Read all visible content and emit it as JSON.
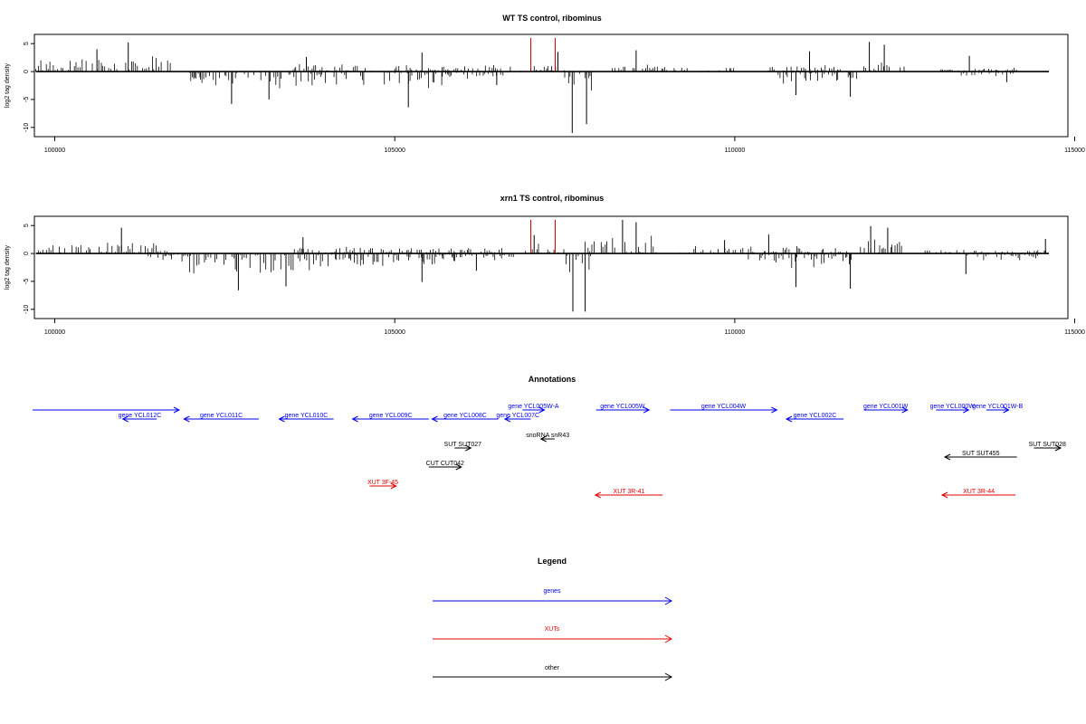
{
  "chart_data": [
    {
      "type": "bar",
      "title": "WT TS control, ribominus",
      "ylabel": "log2 tag density",
      "xlim": [
        99700,
        114900
      ],
      "ylim": [
        -11,
        6
      ],
      "yticks": [
        -10,
        -5,
        0,
        5
      ],
      "xticks": [
        100000,
        105000,
        110000,
        115000
      ],
      "baseline_x": [
        99720,
        114620
      ],
      "highlight_color": "#e00000",
      "highlights": [
        {
          "x": 107000,
          "y": 6.0
        },
        {
          "x": 107360,
          "y": 6.0
        }
      ],
      "regions": [
        {
          "from": 99720,
          "to": 101700,
          "sign": 1,
          "max": 3.0,
          "peaks": [
            {
              "x": 101080,
              "y": 5.2
            },
            {
              "x": 100620,
              "y": 4.0
            }
          ]
        },
        {
          "from": 101950,
          "to": 102150,
          "sign": -1,
          "max": 2.0,
          "peaks": []
        },
        {
          "from": 102000,
          "to": 104300,
          "sign": -1,
          "max": 3.2,
          "peaks": [
            {
              "x": 102600,
              "y": -5.8
            },
            {
              "x": 103150,
              "y": -5.0
            }
          ]
        },
        {
          "from": 103500,
          "to": 104700,
          "sign": 1,
          "max": 1.4,
          "peaks": [
            {
              "x": 103700,
              "y": 2.6
            }
          ]
        },
        {
          "from": 104500,
          "to": 105900,
          "sign": -1,
          "max": 3.4,
          "peaks": [
            {
              "x": 105200,
              "y": -6.4
            }
          ]
        },
        {
          "from": 105000,
          "to": 106600,
          "sign": 1,
          "max": 1.3,
          "peaks": [
            {
              "x": 105400,
              "y": 3.4
            }
          ]
        },
        {
          "from": 105700,
          "to": 106700,
          "sign": -1,
          "max": 1.4,
          "peaks": [
            {
              "x": 106500,
              "y": -2.4
            }
          ]
        },
        {
          "from": 106700,
          "to": 107500,
          "sign": 1,
          "max": 1.4,
          "peaks": [
            {
              "x": 107400,
              "y": 3.5
            }
          ]
        },
        {
          "from": 107500,
          "to": 107900,
          "sign": -1,
          "max": 6.5,
          "peaks": [
            {
              "x": 107610,
              "y": -11.0
            },
            {
              "x": 107820,
              "y": -9.4
            }
          ]
        },
        {
          "from": 108200,
          "to": 109300,
          "sign": 1,
          "max": 1.4,
          "peaks": [
            {
              "x": 108550,
              "y": 3.8
            }
          ]
        },
        {
          "from": 109500,
          "to": 110000,
          "sign": 1,
          "max": 0.8,
          "peaks": []
        },
        {
          "from": 110600,
          "to": 111800,
          "sign": -1,
          "max": 2.6,
          "peaks": [
            {
              "x": 110900,
              "y": -4.2
            },
            {
              "x": 111700,
              "y": -4.5
            }
          ]
        },
        {
          "from": 110500,
          "to": 111600,
          "sign": 1,
          "max": 1.4,
          "peaks": [
            {
              "x": 111100,
              "y": 3.6
            }
          ]
        },
        {
          "from": 111900,
          "to": 112500,
          "sign": 1,
          "max": 3.4,
          "peaks": [
            {
              "x": 111980,
              "y": 5.3
            },
            {
              "x": 112200,
              "y": 4.8
            }
          ]
        },
        {
          "from": 113000,
          "to": 114200,
          "sign": 1,
          "max": 0.8,
          "peaks": [
            {
              "x": 113450,
              "y": 2.8
            }
          ]
        },
        {
          "from": 113300,
          "to": 114200,
          "sign": -1,
          "max": 0.9,
          "peaks": [
            {
              "x": 114000,
              "y": -1.9
            }
          ]
        }
      ]
    },
    {
      "type": "bar",
      "title": "xrn1 TS control, ribominus",
      "ylabel": "log2 tag density",
      "xlim": [
        99700,
        114900
      ],
      "ylim": [
        -11,
        6
      ],
      "yticks": [
        -10,
        -5,
        0,
        5
      ],
      "xticks": [
        100000,
        105000,
        110000,
        115000
      ],
      "baseline_x": [
        99720,
        114620
      ],
      "highlight_color": "#e00000",
      "highlights": [
        {
          "x": 107000,
          "y": 6.0
        },
        {
          "x": 107360,
          "y": 6.0
        }
      ],
      "regions": [
        {
          "from": 99720,
          "to": 101700,
          "sign": 1,
          "max": 2.4,
          "peaks": [
            {
              "x": 100980,
              "y": 4.6
            }
          ]
        },
        {
          "from": 101300,
          "to": 102000,
          "sign": -1,
          "max": 1.6,
          "peaks": []
        },
        {
          "from": 101950,
          "to": 104400,
          "sign": -1,
          "max": 4.0,
          "peaks": [
            {
              "x": 102700,
              "y": -6.6
            },
            {
              "x": 103400,
              "y": -5.9
            }
          ]
        },
        {
          "from": 103500,
          "to": 105000,
          "sign": 1,
          "max": 1.4,
          "peaks": [
            {
              "x": 103650,
              "y": 2.9
            }
          ]
        },
        {
          "from": 104300,
          "to": 105900,
          "sign": -1,
          "max": 2.8,
          "peaks": [
            {
              "x": 105400,
              "y": -5.1
            }
          ]
        },
        {
          "from": 104800,
          "to": 106700,
          "sign": 1,
          "max": 1.3,
          "peaks": []
        },
        {
          "from": 105700,
          "to": 106800,
          "sign": -1,
          "max": 1.6,
          "peaks": [
            {
              "x": 106200,
              "y": -3.1
            }
          ]
        },
        {
          "from": 106900,
          "to": 107500,
          "sign": 1,
          "max": 2.0,
          "peaks": [
            {
              "x": 107050,
              "y": 3.3
            }
          ]
        },
        {
          "from": 107500,
          "to": 107900,
          "sign": -1,
          "max": 6.0,
          "peaks": [
            {
              "x": 107620,
              "y": -10.4
            },
            {
              "x": 107800,
              "y": -10.4
            }
          ]
        },
        {
          "from": 107800,
          "to": 108850,
          "sign": 1,
          "max": 4.2,
          "peaks": [
            {
              "x": 108350,
              "y": 6.0
            },
            {
              "x": 108550,
              "y": 5.6
            }
          ]
        },
        {
          "from": 109200,
          "to": 110800,
          "sign": 1,
          "max": 1.4,
          "peaks": [
            {
              "x": 109850,
              "y": 2.4
            }
          ]
        },
        {
          "from": 110200,
          "to": 111800,
          "sign": -1,
          "max": 3.0,
          "peaks": [
            {
              "x": 110900,
              "y": -6.0
            },
            {
              "x": 111700,
              "y": -6.3
            }
          ]
        },
        {
          "from": 110400,
          "to": 111700,
          "sign": 1,
          "max": 1.6,
          "peaks": [
            {
              "x": 110500,
              "y": 3.4
            }
          ]
        },
        {
          "from": 111850,
          "to": 112500,
          "sign": 1,
          "max": 3.6,
          "peaks": [
            {
              "x": 112000,
              "y": 4.9
            },
            {
              "x": 112250,
              "y": 4.6
            }
          ]
        },
        {
          "from": 112800,
          "to": 114600,
          "sign": 1,
          "max": 0.9,
          "peaks": [
            {
              "x": 114570,
              "y": 2.6
            }
          ]
        },
        {
          "from": 113300,
          "to": 114500,
          "sign": -1,
          "max": 1.4,
          "peaks": [
            {
              "x": 113400,
              "y": -3.7
            }
          ]
        }
      ]
    }
  ],
  "annotations": {
    "title": "Annotations",
    "xlim": [
      99700,
      114900
    ],
    "colors": {
      "gene": "#0000ee",
      "xut": "#e00000",
      "other": "#000000"
    },
    "features": [
      {
        "label": "",
        "kind": "gene",
        "start": 99600,
        "end": 101830,
        "dir": "+",
        "row": 0
      },
      {
        "label": "gene YCL012C",
        "kind": "gene",
        "start": 101000,
        "end": 101500,
        "dir": "-",
        "row": 1
      },
      {
        "label": "gene YCL011C",
        "kind": "gene",
        "start": 101900,
        "end": 103000,
        "dir": "-",
        "row": 1
      },
      {
        "label": "gene YCL010C",
        "kind": "gene",
        "start": 103300,
        "end": 104100,
        "dir": "-",
        "row": 1
      },
      {
        "label": "gene YCL009C",
        "kind": "gene",
        "start": 104380,
        "end": 105500,
        "dir": "-",
        "row": 1
      },
      {
        "label": "gene YCL008C",
        "kind": "gene",
        "start": 105550,
        "end": 106520,
        "dir": "-",
        "row": 1
      },
      {
        "label": "gene YCL005W-A",
        "kind": "gene",
        "start": 106880,
        "end": 107200,
        "dir": "+",
        "row": 0
      },
      {
        "label": "gene YCL007C",
        "kind": "gene",
        "start": 106620,
        "end": 107000,
        "dir": "-",
        "row": 1
      },
      {
        "label": "gene YCL005W",
        "kind": "gene",
        "start": 107960,
        "end": 108740,
        "dir": "+",
        "row": 0
      },
      {
        "label": "gene YCL004W",
        "kind": "gene",
        "start": 109050,
        "end": 110620,
        "dir": "+",
        "row": 0
      },
      {
        "label": "gene YCL002C",
        "kind": "gene",
        "start": 110760,
        "end": 111600,
        "dir": "-",
        "row": 1
      },
      {
        "label": "gene YCL001W",
        "kind": "gene",
        "start": 111900,
        "end": 112540,
        "dir": "+",
        "row": 0
      },
      {
        "label": "gene YCL000W",
        "kind": "gene",
        "start": 112960,
        "end": 113440,
        "dir": "+",
        "row": 0
      },
      {
        "label": "gene YCL001W-B",
        "kind": "gene",
        "start": 113700,
        "end": 114030,
        "dir": "+",
        "row": 0
      },
      {
        "label": "SUT SUT027",
        "kind": "other",
        "start": 105880,
        "end": 106120,
        "dir": "+",
        "row": 3
      },
      {
        "label": "snoRNA snR43",
        "kind": "other",
        "start": 107150,
        "end": 107350,
        "dir": "-",
        "row": 2
      },
      {
        "label": "CUT CUT042",
        "kind": "other",
        "start": 105500,
        "end": 105980,
        "dir": "+",
        "row": 5
      },
      {
        "label": "SUT SUT455",
        "kind": "other",
        "start": 113090,
        "end": 114150,
        "dir": "-",
        "row": 4
      },
      {
        "label": "SUT SUT028",
        "kind": "other",
        "start": 114400,
        "end": 114900,
        "dir": "+",
        "row": 3
      },
      {
        "label": "XUT 3F-45",
        "kind": "xut",
        "start": 104630,
        "end": 105020,
        "dir": "+",
        "row": 6
      },
      {
        "label": "XUT 3R-41",
        "kind": "xut",
        "start": 107950,
        "end": 108940,
        "dir": "-",
        "row": 7
      },
      {
        "label": "XUT 3R-44",
        "kind": "xut",
        "start": 113050,
        "end": 114130,
        "dir": "-",
        "row": 7
      }
    ]
  },
  "legend": {
    "title": "Legend",
    "items": [
      {
        "label": "genes",
        "color": "#0000ee"
      },
      {
        "label": "XUTs",
        "color": "#e00000"
      },
      {
        "label": "other",
        "color": "#000000"
      }
    ]
  }
}
